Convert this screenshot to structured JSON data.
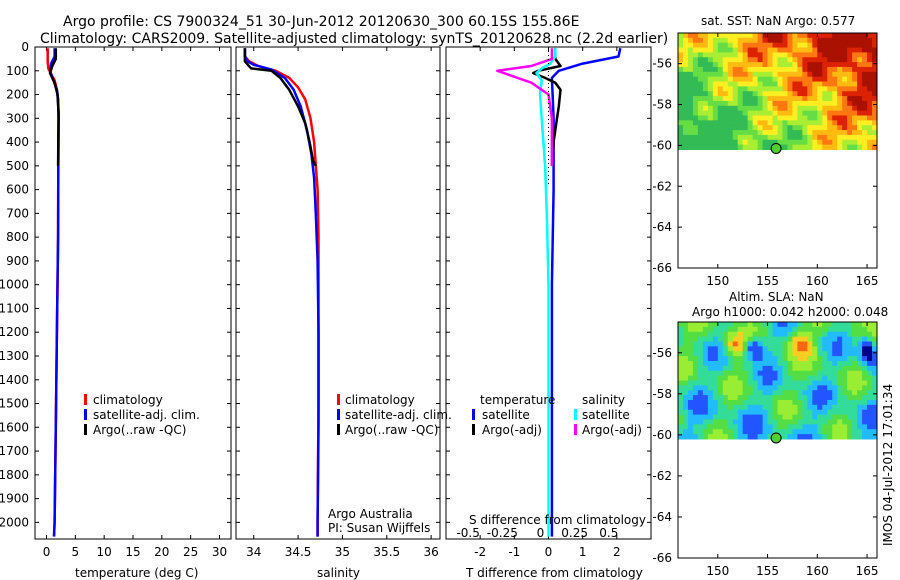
{
  "figure": {
    "title_line1": "Argo profile: CS 7900324_51 30-Jun-2012 20120630_300 60.15S 155.86E",
    "title_line2": "Climatology: CARS2009. Satellite-adjusted climatology: synTS_20120628.nc (2.2d earlier)",
    "credit_line1": "Argo Australia",
    "credit_line2": "PI: Susan Wijffels",
    "timestamp": "IMOS 04-Jul-2012 17:01:34"
  },
  "colors": {
    "climatology": "#ff0000",
    "satellite": "#0000ff",
    "argo": "#000000",
    "sal_satellite": "#00ffff",
    "sal_argo": "#ff00ff"
  },
  "chart_data": [
    {
      "type": "line",
      "id": "temperature",
      "xlabel": "temperature (deg C)",
      "ylabel": "",
      "xlim": [
        -2,
        32
      ],
      "ylim": [
        2070,
        0
      ],
      "xticks": [
        0,
        5,
        10,
        15,
        20,
        25,
        30
      ],
      "yticks": [
        0,
        100,
        200,
        300,
        400,
        500,
        600,
        700,
        800,
        900,
        1000,
        1100,
        1200,
        1300,
        1400,
        1500,
        1600,
        1700,
        1800,
        1900,
        2000
      ],
      "series": [
        {
          "name": "climatology",
          "color": "#ff0000",
          "points": [
            [
              0.2,
              5
            ],
            [
              0.2,
              60
            ],
            [
              0.3,
              90
            ],
            [
              0.7,
              110
            ],
            [
              1.4,
              140
            ],
            [
              1.8,
              180
            ],
            [
              2.0,
              220
            ],
            [
              2.1,
              300
            ],
            [
              2.05,
              500
            ],
            [
              2.0,
              800
            ],
            [
              1.8,
              1200
            ],
            [
              1.6,
              1600
            ],
            [
              1.4,
              2000
            ],
            [
              1.3,
              2060
            ]
          ]
        },
        {
          "name": "satellite-adj. clim.",
          "color": "#0000ff",
          "points": [
            [
              1.4,
              5
            ],
            [
              1.4,
              40
            ],
            [
              0.8,
              70
            ],
            [
              0.6,
              100
            ],
            [
              1.2,
              140
            ],
            [
              1.8,
              180
            ],
            [
              2.0,
              220
            ],
            [
              2.1,
              300
            ],
            [
              2.05,
              500
            ],
            [
              2.0,
              800
            ],
            [
              1.8,
              1200
            ],
            [
              1.6,
              1600
            ],
            [
              1.4,
              2000
            ],
            [
              1.3,
              2060
            ]
          ]
        },
        {
          "name": "Argo(..raw -QC)",
          "color": "#000000",
          "points": [
            [
              1.6,
              5
            ],
            [
              1.6,
              50
            ],
            [
              1.0,
              80
            ],
            [
              0.6,
              110
            ],
            [
              1.4,
              150
            ],
            [
              1.9,
              200
            ],
            [
              2.1,
              280
            ],
            [
              2.05,
              400
            ],
            [
              2.0,
              500
            ]
          ]
        }
      ],
      "legend": [
        "climatology",
        "satellite-adj. clim.",
        "Argo(..raw -QC)"
      ]
    },
    {
      "type": "line",
      "id": "salinity",
      "xlabel": "salinity",
      "xlim": [
        33.8,
        36.1
      ],
      "ylim": [
        2070,
        0
      ],
      "xticks": [
        34,
        34.5,
        35,
        35.5,
        36
      ],
      "xtick_labels": [
        "34",
        "34.5",
        "35",
        "35.5",
        "36"
      ],
      "series": [
        {
          "name": "climatology",
          "color": "#ff0000",
          "points": [
            [
              33.9,
              5
            ],
            [
              33.9,
              40
            ],
            [
              33.95,
              60
            ],
            [
              34.05,
              80
            ],
            [
              34.25,
              100
            ],
            [
              34.4,
              130
            ],
            [
              34.5,
              170
            ],
            [
              34.58,
              220
            ],
            [
              34.64,
              300
            ],
            [
              34.68,
              400
            ],
            [
              34.7,
              500
            ],
            [
              34.72,
              600
            ],
            [
              34.73,
              800
            ],
            [
              34.73,
              1000
            ],
            [
              34.73,
              1500
            ],
            [
              34.72,
              2000
            ],
            [
              34.72,
              2060
            ]
          ]
        },
        {
          "name": "satellite-adj. clim.",
          "color": "#0000ff",
          "points": [
            [
              33.9,
              5
            ],
            [
              33.9,
              40
            ],
            [
              33.93,
              60
            ],
            [
              34.0,
              75
            ],
            [
              34.2,
              95
            ],
            [
              34.35,
              130
            ],
            [
              34.45,
              180
            ],
            [
              34.53,
              250
            ],
            [
              34.6,
              350
            ],
            [
              34.65,
              450
            ],
            [
              34.68,
              550
            ],
            [
              34.7,
              700
            ],
            [
              34.72,
              900
            ],
            [
              34.73,
              1200
            ],
            [
              34.73,
              1600
            ],
            [
              34.72,
              2000
            ],
            [
              34.72,
              2060
            ]
          ]
        },
        {
          "name": "Argo(..raw -QC)",
          "color": "#000000",
          "points": [
            [
              33.9,
              5
            ],
            [
              33.9,
              60
            ],
            [
              33.97,
              90
            ],
            [
              34.2,
              100
            ],
            [
              34.3,
              130
            ],
            [
              34.4,
              180
            ],
            [
              34.5,
              250
            ],
            [
              34.58,
              320
            ],
            [
              34.63,
              400
            ],
            [
              34.67,
              480
            ],
            [
              34.7,
              500
            ]
          ]
        }
      ],
      "legend": [
        "climatology",
        "satellite-adj. clim.",
        "Argo(..raw -QC)"
      ]
    },
    {
      "type": "line",
      "id": "difference",
      "xlabel": "T difference from climatology",
      "top_label": "S difference from climatology",
      "xlim": [
        -3,
        3
      ],
      "ylim": [
        2070,
        0
      ],
      "xticks": [
        -2,
        -1,
        0,
        1,
        2
      ],
      "xtick_labels": [
        "-2",
        "-1",
        "0",
        "1",
        "2"
      ],
      "sticks": [
        -2,
        -1,
        0,
        1,
        2
      ],
      "stick_labels": [
        "-0.5",
        "-0.25",
        "0",
        "0.25",
        "0.5"
      ],
      "legend_header_temperature": "temperature",
      "legend_header_salinity": "salinity",
      "series": [
        {
          "name": "satellite",
          "group": "temperature",
          "color": "#0000ff",
          "points": [
            [
              2.1,
              5
            ],
            [
              2.05,
              40
            ],
            [
              1.0,
              70
            ],
            [
              0.3,
              100
            ],
            [
              0.1,
              130
            ],
            [
              0.12,
              200
            ],
            [
              0.15,
              300
            ],
            [
              0.15,
              600
            ],
            [
              0.1,
              1000
            ],
            [
              0.1,
              1500
            ],
            [
              0.1,
              2060
            ]
          ]
        },
        {
          "name": "Argo(-adj)",
          "group": "temperature",
          "color": "#000000",
          "points": [
            [
              0.2,
              5
            ],
            [
              0.2,
              50
            ],
            [
              0.35,
              80
            ],
            [
              -0.3,
              100
            ],
            [
              -0.45,
              110
            ],
            [
              -0.1,
              130
            ],
            [
              0.2,
              150
            ],
            [
              0.35,
              180
            ],
            [
              0.3,
              250
            ],
            [
              0.25,
              300
            ],
            [
              0.15,
              400
            ],
            [
              0.1,
              500
            ]
          ]
        },
        {
          "name": "satellite",
          "group": "salinity",
          "color": "#00ffff",
          "points": [
            [
              0.2,
              5
            ],
            [
              0.2,
              40
            ],
            [
              0.05,
              70
            ],
            [
              -0.2,
              90
            ],
            [
              -0.35,
              110
            ],
            [
              -0.2,
              140
            ],
            [
              -0.25,
              200
            ],
            [
              -0.2,
              300
            ],
            [
              -0.1,
              500
            ],
            [
              -0.05,
              700
            ],
            [
              0,
              1000
            ],
            [
              0,
              1500
            ],
            [
              0,
              2060
            ]
          ]
        },
        {
          "name": "Argo(-adj)",
          "group": "salinity",
          "color": "#ff00ff",
          "points": [
            [
              0.1,
              5
            ],
            [
              0.1,
              50
            ],
            [
              -0.5,
              80
            ],
            [
              -1.5,
              100
            ],
            [
              -0.5,
              150
            ],
            [
              0,
              200
            ],
            [
              0.05,
              250
            ],
            [
              0.1,
              300
            ],
            [
              0.1,
              500
            ]
          ]
        }
      ]
    },
    {
      "type": "heatmap",
      "id": "sst_map",
      "title": "sat. SST: NaN Argo: 0.577",
      "xlim": [
        146,
        166
      ],
      "ylim": [
        -66,
        -54.5
      ],
      "xticks": [
        150,
        155,
        160,
        165
      ],
      "yticks": [
        -56,
        -58,
        -60,
        -62,
        -64,
        -66
      ],
      "data_extent_lat": [
        -60.2,
        -54.5
      ],
      "marker": [
        155.86,
        -60.15
      ]
    },
    {
      "type": "heatmap",
      "id": "sla_map",
      "title_line1": "Altim. SLA: NaN",
      "title_line2": "Argo h1000: 0.042 h2000: 0.048",
      "xlim": [
        146,
        166
      ],
      "ylim": [
        -66,
        -54.5
      ],
      "xticks": [
        150,
        155,
        160,
        165
      ],
      "yticks": [
        -56,
        -58,
        -60,
        -62,
        -64,
        -66
      ],
      "data_extent_lat": [
        -60.2,
        -54.5
      ],
      "marker": [
        155.86,
        -60.15
      ]
    }
  ]
}
